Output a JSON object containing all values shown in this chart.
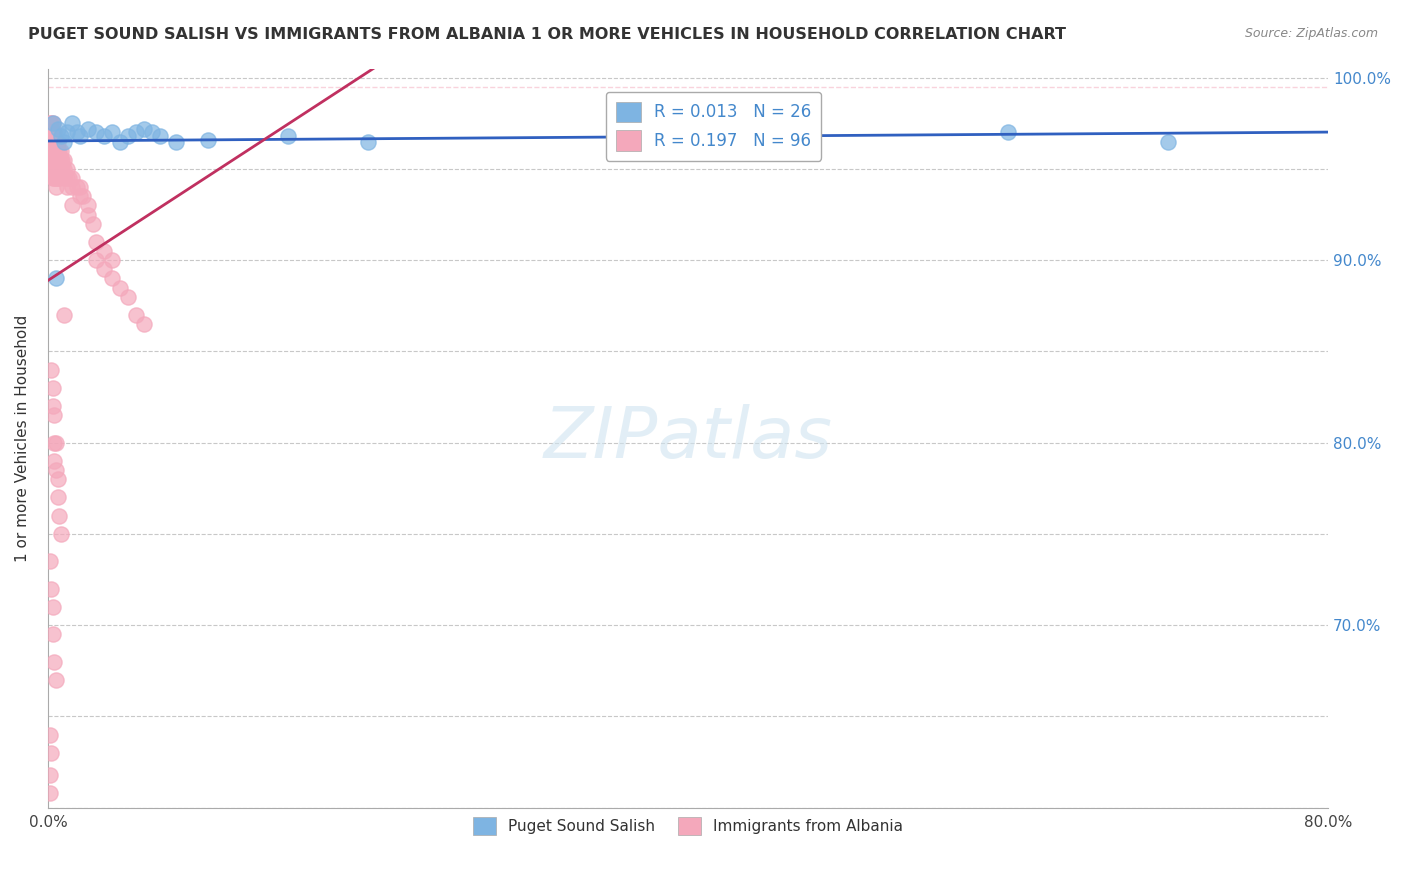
{
  "title": "PUGET SOUND SALISH VS IMMIGRANTS FROM ALBANIA 1 OR MORE VEHICLES IN HOUSEHOLD CORRELATION CHART",
  "source": "Source: ZipAtlas.com",
  "ylabel": "1 or more Vehicles in Household",
  "xlabel": "",
  "xlim": [
    0.0,
    0.8
  ],
  "ylim": [
    0.6,
    1.005
  ],
  "xticks": [
    0.0,
    0.1,
    0.2,
    0.3,
    0.4,
    0.5,
    0.6,
    0.7,
    0.8
  ],
  "yticks": [
    0.6,
    0.65,
    0.7,
    0.75,
    0.8,
    0.85,
    0.9,
    0.95,
    1.0
  ],
  "legend_label1": "Puget Sound Salish",
  "legend_label2": "Immigrants from Albania",
  "blue_color": "#7EB4E2",
  "pink_color": "#F4A8BB",
  "blue_line_color": "#3060C0",
  "pink_line_color": "#C03060",
  "blue_scatter": [
    [
      0.003,
      0.975
    ],
    [
      0.006,
      0.972
    ],
    [
      0.008,
      0.968
    ],
    [
      0.01,
      0.965
    ],
    [
      0.012,
      0.97
    ],
    [
      0.015,
      0.975
    ],
    [
      0.018,
      0.97
    ],
    [
      0.02,
      0.968
    ],
    [
      0.025,
      0.972
    ],
    [
      0.03,
      0.97
    ],
    [
      0.035,
      0.968
    ],
    [
      0.04,
      0.97
    ],
    [
      0.045,
      0.965
    ],
    [
      0.05,
      0.968
    ],
    [
      0.055,
      0.97
    ],
    [
      0.06,
      0.972
    ],
    [
      0.065,
      0.97
    ],
    [
      0.07,
      0.968
    ],
    [
      0.08,
      0.965
    ],
    [
      0.1,
      0.966
    ],
    [
      0.15,
      0.968
    ],
    [
      0.2,
      0.965
    ],
    [
      0.42,
      0.97
    ],
    [
      0.6,
      0.97
    ],
    [
      0.7,
      0.965
    ],
    [
      0.005,
      0.89
    ]
  ],
  "pink_scatter": [
    [
      0.001,
      0.975
    ],
    [
      0.001,
      0.97
    ],
    [
      0.001,
      0.965
    ],
    [
      0.001,
      0.96
    ],
    [
      0.001,
      0.955
    ],
    [
      0.002,
      0.975
    ],
    [
      0.002,
      0.97
    ],
    [
      0.002,
      0.965
    ],
    [
      0.002,
      0.96
    ],
    [
      0.002,
      0.955
    ],
    [
      0.002,
      0.95
    ],
    [
      0.003,
      0.975
    ],
    [
      0.003,
      0.97
    ],
    [
      0.003,
      0.965
    ],
    [
      0.003,
      0.96
    ],
    [
      0.003,
      0.955
    ],
    [
      0.003,
      0.95
    ],
    [
      0.003,
      0.945
    ],
    [
      0.004,
      0.97
    ],
    [
      0.004,
      0.965
    ],
    [
      0.004,
      0.96
    ],
    [
      0.004,
      0.955
    ],
    [
      0.004,
      0.95
    ],
    [
      0.004,
      0.945
    ],
    [
      0.005,
      0.965
    ],
    [
      0.005,
      0.96
    ],
    [
      0.005,
      0.955
    ],
    [
      0.005,
      0.95
    ],
    [
      0.005,
      0.945
    ],
    [
      0.005,
      0.94
    ],
    [
      0.006,
      0.965
    ],
    [
      0.006,
      0.96
    ],
    [
      0.006,
      0.955
    ],
    [
      0.006,
      0.95
    ],
    [
      0.006,
      0.945
    ],
    [
      0.007,
      0.96
    ],
    [
      0.007,
      0.955
    ],
    [
      0.007,
      0.95
    ],
    [
      0.007,
      0.945
    ],
    [
      0.008,
      0.96
    ],
    [
      0.008,
      0.955
    ],
    [
      0.008,
      0.95
    ],
    [
      0.009,
      0.955
    ],
    [
      0.009,
      0.95
    ],
    [
      0.01,
      0.955
    ],
    [
      0.01,
      0.95
    ],
    [
      0.01,
      0.945
    ],
    [
      0.01,
      0.87
    ],
    [
      0.012,
      0.95
    ],
    [
      0.012,
      0.945
    ],
    [
      0.012,
      0.94
    ],
    [
      0.013,
      0.945
    ],
    [
      0.015,
      0.945
    ],
    [
      0.015,
      0.94
    ],
    [
      0.015,
      0.93
    ],
    [
      0.018,
      0.94
    ],
    [
      0.02,
      0.94
    ],
    [
      0.02,
      0.935
    ],
    [
      0.022,
      0.935
    ],
    [
      0.025,
      0.93
    ],
    [
      0.025,
      0.925
    ],
    [
      0.028,
      0.92
    ],
    [
      0.03,
      0.91
    ],
    [
      0.03,
      0.9
    ],
    [
      0.035,
      0.905
    ],
    [
      0.035,
      0.895
    ],
    [
      0.04,
      0.9
    ],
    [
      0.04,
      0.89
    ],
    [
      0.045,
      0.885
    ],
    [
      0.05,
      0.88
    ],
    [
      0.055,
      0.87
    ],
    [
      0.06,
      0.865
    ],
    [
      0.002,
      0.84
    ],
    [
      0.003,
      0.83
    ],
    [
      0.003,
      0.82
    ],
    [
      0.004,
      0.815
    ],
    [
      0.004,
      0.8
    ],
    [
      0.004,
      0.79
    ],
    [
      0.005,
      0.8
    ],
    [
      0.005,
      0.785
    ],
    [
      0.006,
      0.78
    ],
    [
      0.006,
      0.77
    ],
    [
      0.007,
      0.76
    ],
    [
      0.008,
      0.75
    ],
    [
      0.001,
      0.735
    ],
    [
      0.002,
      0.72
    ],
    [
      0.003,
      0.71
    ],
    [
      0.003,
      0.695
    ],
    [
      0.004,
      0.68
    ],
    [
      0.005,
      0.67
    ],
    [
      0.001,
      0.64
    ],
    [
      0.002,
      0.63
    ],
    [
      0.001,
      0.618
    ],
    [
      0.001,
      0.608
    ]
  ]
}
